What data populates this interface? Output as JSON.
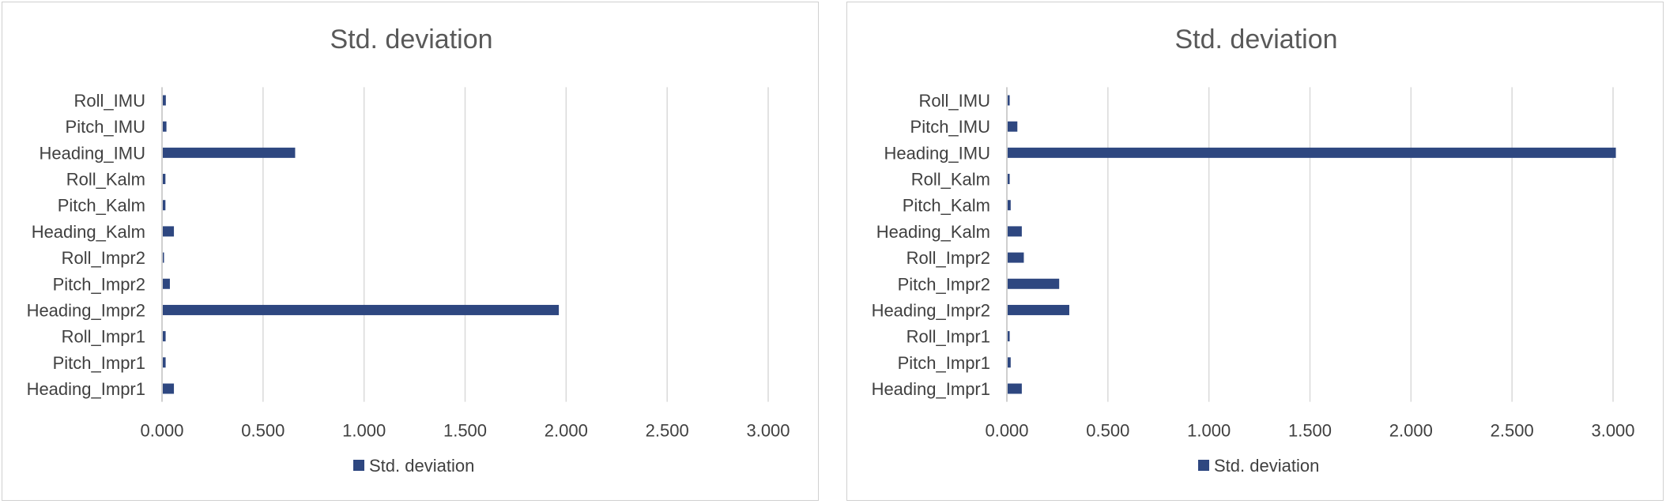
{
  "colors": {
    "bar": "#2e4780",
    "grid": "#d9d9d9",
    "text": "#404040",
    "title": "#595959"
  },
  "chart_data": [
    {
      "type": "bar",
      "orientation": "horizontal",
      "title": "Std. deviation",
      "legend": {
        "position": "bottom",
        "entries": [
          "Std. deviation"
        ]
      },
      "categories": [
        "Roll_IMU",
        "Pitch_IMU",
        "Heading_IMU",
        "Roll_Kalm",
        "Pitch_Kalm",
        "Heading_Kalm",
        "Roll_Impr2",
        "Pitch_Impr2",
        "Heading_Impr2",
        "Roll_Impr1",
        "Pitch_Impr1",
        "Heading_Impr1"
      ],
      "series": [
        {
          "name": "Std. deviation",
          "values": [
            0.015,
            0.018,
            0.655,
            0.013,
            0.013,
            0.055,
            0.006,
            0.035,
            1.96,
            0.014,
            0.014,
            0.055
          ]
        }
      ],
      "xlim": [
        0,
        3.0
      ],
      "xticks": [
        "0.000",
        "0.500",
        "1.000",
        "1.500",
        "2.000",
        "2.500",
        "3.000"
      ],
      "grid": true
    },
    {
      "type": "bar",
      "orientation": "horizontal",
      "title": "Std. deviation",
      "legend": {
        "position": "bottom",
        "entries": [
          "Std. deviation"
        ]
      },
      "categories": [
        "Roll_IMU",
        "Pitch_IMU",
        "Heading_IMU",
        "Roll_Kalm",
        "Pitch_Kalm",
        "Heading_Kalm",
        "Roll_Impr2",
        "Pitch_Impr2",
        "Heading_Impr2",
        "Roll_Impr1",
        "Pitch_Impr1",
        "Heading_Impr1"
      ],
      "series": [
        {
          "name": "Std. deviation",
          "values": [
            0.01,
            0.048,
            3.01,
            0.01,
            0.015,
            0.07,
            0.08,
            0.255,
            0.305,
            0.01,
            0.015,
            0.07
          ]
        }
      ],
      "xlim": [
        0,
        3.0
      ],
      "xticks": [
        "0.000",
        "0.500",
        "1.000",
        "1.500",
        "2.000",
        "2.500",
        "3.000"
      ],
      "grid": true
    }
  ]
}
